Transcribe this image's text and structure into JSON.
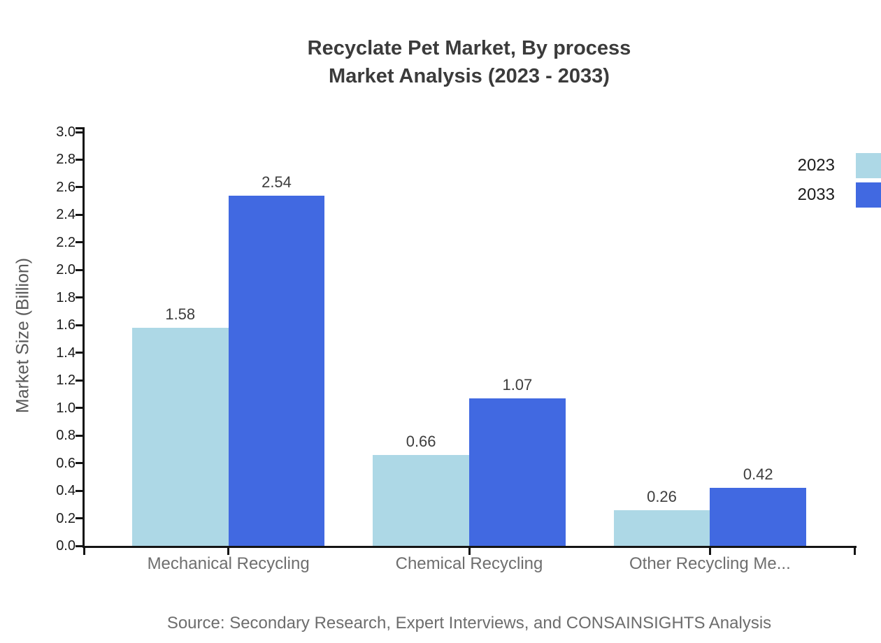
{
  "chart_data": {
    "type": "bar",
    "title": "Recyclate Pet Market, By process Market Analysis (2023 - 2033)",
    "title_lines": [
      "Recyclate Pet Market, By process",
      "Market Analysis (2023 - 2033)"
    ],
    "categories": [
      "Mechanical Recycling",
      "Chemical Recycling",
      "Other Recycling Me..."
    ],
    "series": [
      {
        "name": "2023",
        "color": "#add8e6",
        "values": [
          1.58,
          0.66,
          0.26
        ]
      },
      {
        "name": "2033",
        "color": "#4169e1",
        "values": [
          2.54,
          1.07,
          0.42
        ]
      }
    ],
    "xlabel": "",
    "ylabel": "Market Size (Billion)",
    "ylim": [
      0.0,
      3.0
    ],
    "ytick_step": 0.2,
    "ytick_decimals": 1,
    "value_label_decimals": 2,
    "grid": false,
    "legend_position": "top-right",
    "value_labels": true,
    "source_note": "Source: Secondary Research, Expert Interviews, and CONSAINSIGHTS Analysis"
  },
  "colors": {
    "background": "#ffffff",
    "series_2023": "#add8e6",
    "series_2033": "#4169e1",
    "axis": "#141414",
    "title_text": "#3b3b3b",
    "category_text": "#6e6e6e",
    "value_text": "#3d3d3d",
    "source_text": "#6d6d6d"
  }
}
